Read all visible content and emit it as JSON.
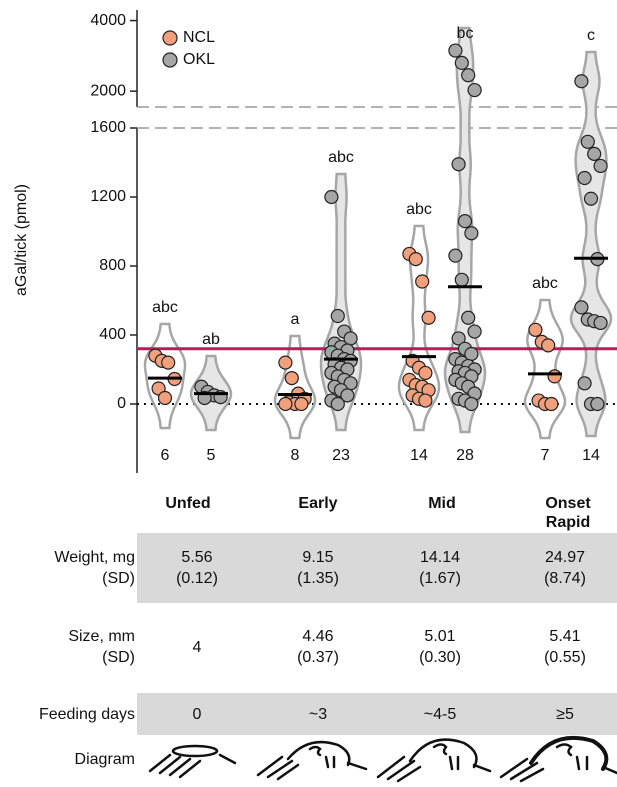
{
  "chart_data": {
    "type": "violin",
    "ylabel": "aGal/tick (pmol)",
    "categories": [
      "Unfed",
      "Early",
      "Mid",
      "Onset Rapid"
    ],
    "series": [
      {
        "name": "NCL",
        "color": "#f0a07c",
        "values": [
          [
            280,
            250,
            240,
            145,
            90,
            35
          ],
          [
            240,
            150,
            60,
            30,
            10,
            0,
            0,
            0
          ],
          [
            870,
            840,
            710,
            500,
            250,
            210,
            180,
            140,
            110,
            100,
            80,
            50,
            30,
            20
          ],
          [
            430,
            360,
            340,
            160,
            20,
            0,
            0
          ]
        ],
        "means": [
          150,
          55,
          275,
          175
        ],
        "letters": [
          "abc",
          "a",
          "abc",
          "abc"
        ],
        "n": [
          6,
          8,
          14,
          7
        ]
      },
      {
        "name": "OKL",
        "color": "#a6a6a6",
        "values": [
          [
            100,
            70,
            50,
            40,
            35
          ],
          [
            1200,
            510,
            420,
            380,
            350,
            330,
            310,
            300,
            280,
            260,
            250,
            230,
            210,
            200,
            180,
            160,
            140,
            120,
            100,
            80,
            50,
            20,
            0
          ],
          [
            3150,
            2800,
            2450,
            2030,
            1390,
            1060,
            990,
            860,
            720,
            500,
            420,
            380,
            320,
            290,
            260,
            240,
            220,
            200,
            190,
            180,
            160,
            140,
            120,
            100,
            60,
            30,
            20,
            0
          ],
          [
            2280,
            1520,
            1450,
            1380,
            1310,
            1190,
            840,
            560,
            490,
            480,
            470,
            120,
            0,
            0
          ]
        ],
        "means": [
          60,
          260,
          680,
          845
        ],
        "letters": [
          "ab",
          "abc",
          "bc",
          "c"
        ],
        "n": [
          5,
          23,
          28,
          14
        ]
      }
    ],
    "ylim": [
      -400,
      1600
    ],
    "yticks": [
      0,
      400,
      800,
      1200,
      1600
    ],
    "ylim_top": [
      1550,
      4300
    ],
    "yticks_top": [
      2000,
      4000
    ],
    "reference_line": {
      "value": 320,
      "color": "#c2185b"
    },
    "legend": "upper left"
  },
  "table": {
    "rows": [
      {
        "label": [
          "Weight, mg",
          "(SD)"
        ],
        "shaded": true,
        "cells": [
          [
            "5.56",
            "(0.12)"
          ],
          [
            "9.15",
            "(1.35)"
          ],
          [
            "14.14",
            "(1.67)"
          ],
          [
            "24.97",
            "(8.74)"
          ]
        ]
      },
      {
        "label": [
          "Size, mm",
          "(SD)"
        ],
        "shaded": false,
        "cells": [
          [
            "4"
          ],
          [
            "4.46",
            "(0.37)"
          ],
          [
            "5.01",
            "(0.30)"
          ],
          [
            "5.41",
            "(0.55)"
          ]
        ]
      },
      {
        "label": [
          "Feeding days"
        ],
        "shaded": true,
        "cells": [
          [
            "0"
          ],
          [
            "~3"
          ],
          [
            "~4-5"
          ],
          [
            "≥5"
          ]
        ]
      },
      {
        "label": [
          "Diagram"
        ],
        "shaded": false,
        "cells": []
      }
    ]
  }
}
